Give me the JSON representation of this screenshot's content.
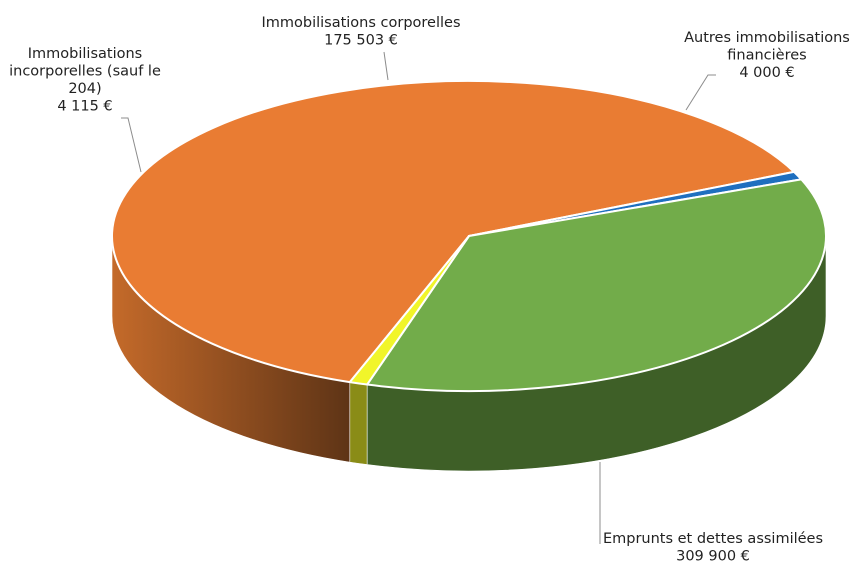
{
  "chart_data": {
    "type": "pie",
    "style": "3d",
    "title": "",
    "legend": "none",
    "slices": [
      {
        "label_lines": [
          "Emprunts et dettes assimilées"
        ],
        "value": 309900,
        "value_text": "309 900 €",
        "color": "#E97C33",
        "side_color_light": "#C46A2A",
        "side_color_dark": "#5E3416"
      },
      {
        "label_lines": [
          "Immobilisations",
          "incorporelles (sauf le",
          "204)"
        ],
        "value": 4115,
        "value_text": "4 115 €",
        "color": "#1F6FBF",
        "side_color_light": "#1F6FBF",
        "side_color_dark": "#1F6FBF"
      },
      {
        "label_lines": [
          "Immobilisations corporelles"
        ],
        "value": 175503,
        "value_text": "175 503 €",
        "color": "#72AC4A",
        "side_color_light": "#5E8F3C",
        "side_color_dark": "#3E5F27"
      },
      {
        "label_lines": [
          "Autres immobilisations",
          "financières"
        ],
        "value": 4000,
        "value_text": "4 000 €",
        "color": "#F1F52A",
        "side_color_light": "#C9CC22",
        "side_color_dark": "#8A8C17"
      }
    ]
  }
}
